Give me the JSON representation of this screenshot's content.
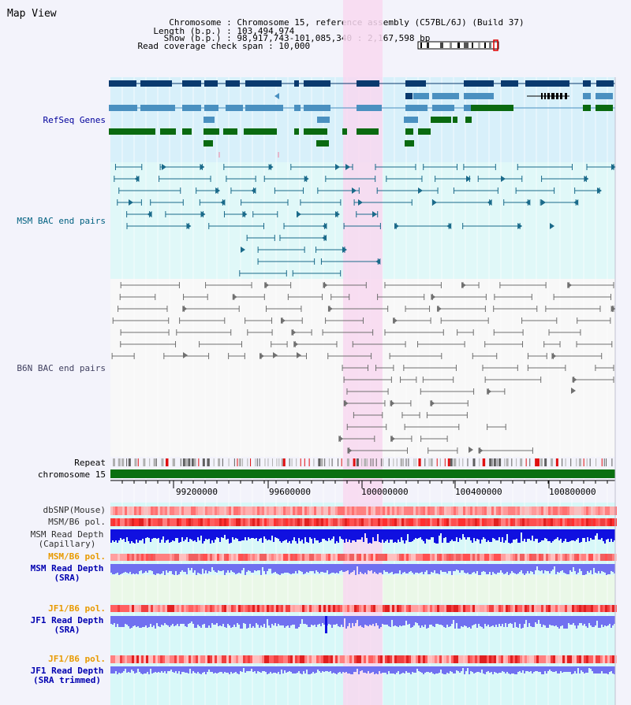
{
  "app": {
    "title": "Map View"
  },
  "info": [
    {
      "label": "Chromosome",
      "value": "Chromosome 15, reference assembly (C57BL/6J) (Build 37)"
    },
    {
      "label": "Length (b.p.)",
      "value": "103,494,974"
    },
    {
      "label": "Show (b.p.)",
      "value": "98,917,743-101,085,340 : 2,167,598 bp"
    },
    {
      "label": "Read coverage check span",
      "value": "10,000"
    }
  ],
  "tracks": {
    "refseq": {
      "label": "RefSeq Genes",
      "color": "#00009c"
    },
    "msm_bac": {
      "label": "MSM BAC end pairs",
      "color": "#006080"
    },
    "b6n_bac": {
      "label": "B6N BAC end pairs",
      "color": "#404060"
    },
    "repeat": {
      "label": "Repeat"
    },
    "chromosome": {
      "label": "chromosome 15"
    },
    "dbsnp": {
      "label": "dbSNP(Mouse)",
      "color": "#303030"
    },
    "msm_b6_pol": {
      "label": "MSM/B6 pol.",
      "color": "#303030"
    },
    "msm_depth_cap": {
      "line1": "MSM Read Depth",
      "line2": "(Capillary)",
      "color": "#303030"
    },
    "msm_b6_pol_2": {
      "label": "MSM/B6 pol.",
      "color": "#e89a00"
    },
    "msm_depth_sra": {
      "line1": "MSM Read Depth",
      "line2": "(SRA)",
      "color": "#0000b0"
    },
    "jf1_b6_pol": {
      "label": "JF1/B6 pol.",
      "color": "#e89a00"
    },
    "jf1_depth_sra": {
      "line1": "JF1 Read Depth",
      "line2": "(SRA)",
      "color": "#0000b0"
    },
    "jf1_b6_pol_2": {
      "label": "JF1/B6 pol.",
      "color": "#e89a00"
    },
    "jf1_depth_trim": {
      "line1": "JF1 Read Depth",
      "line2": "(SRA trimmed)",
      "color": "#0000b0"
    }
  },
  "axis": {
    "ticks": [
      "99200000",
      "99600000",
      "100000000",
      "100400000",
      "100800000"
    ]
  },
  "colors": {
    "refseq_dark": "#0a3a6e",
    "refseq_mid": "#4a90c0",
    "refseq_green": "#0a6a10",
    "msm_line": "#1a6a8a",
    "b6n_line": "#707070",
    "highlight": "#f8d8f0",
    "chrom_bar": "#0a7010",
    "depth_blue": "#1010e0",
    "depth_light": "#7070f0",
    "snp_red": "#e83030"
  }
}
